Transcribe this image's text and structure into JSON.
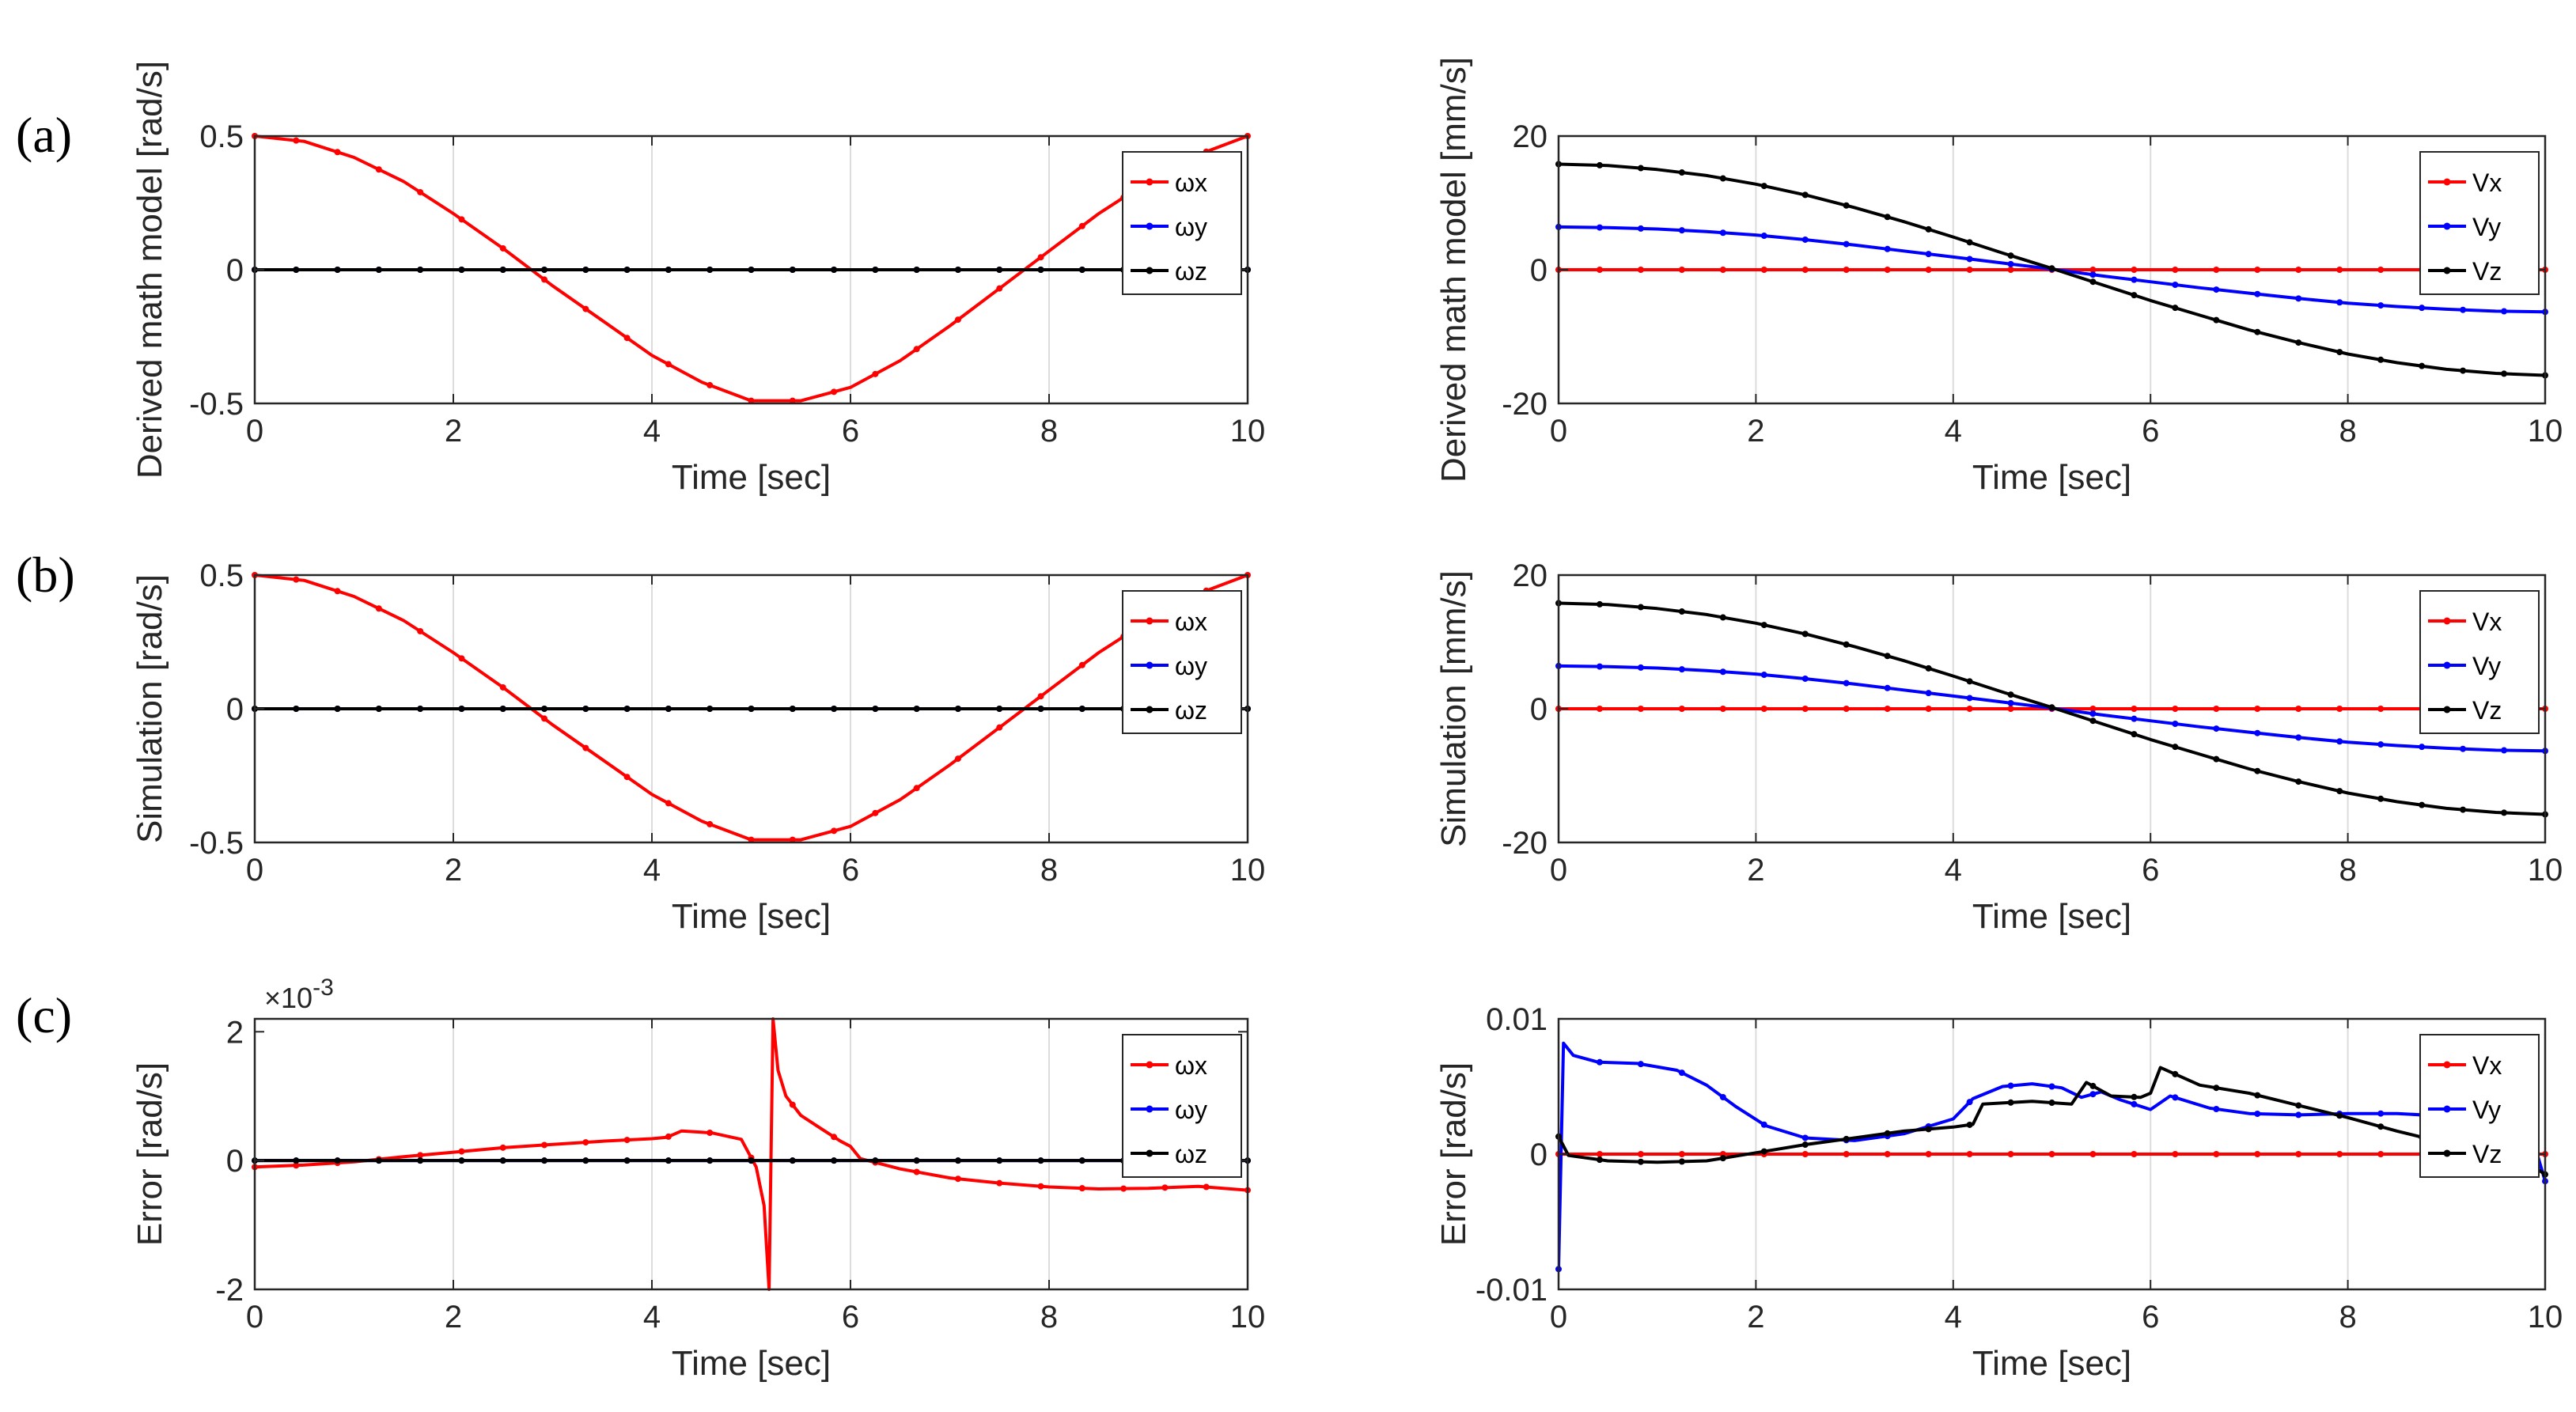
{
  "figure": {
    "row_labels": [
      "(a)",
      "(b)",
      "(c)"
    ]
  },
  "colors": {
    "red": "#ff0000",
    "blue": "#0000ff",
    "black": "#000000",
    "grid": "#dcdcdc",
    "axis": "#262626"
  },
  "chart_data": [
    {
      "id": "a-left",
      "type": "line",
      "title": "",
      "xlabel": "Time [sec]",
      "ylabel": "Derived math model [rad/s]",
      "xlim": [
        0,
        10
      ],
      "ylim": [
        -0.5,
        0.5
      ],
      "xticks": [
        0,
        2,
        4,
        6,
        8,
        10
      ],
      "xtick_labels": [
        "0",
        "2",
        "4",
        "6",
        "8",
        "10"
      ],
      "yticks": [
        -0.5,
        0,
        0.5
      ],
      "ytick_labels": [
        "-0.5",
        "0",
        "0.5"
      ],
      "grid": "x",
      "legend": "top-right",
      "series": [
        {
          "name": "ωx",
          "color": "#ff0000",
          "x": [
            0,
            0.5,
            1,
            1.5,
            2,
            2.5,
            3,
            3.5,
            4,
            4.5,
            5,
            5.5,
            6,
            6.5,
            7,
            7.5,
            8,
            8.5,
            9,
            9.5,
            10
          ],
          "y": [
            0.5,
            0.48,
            0.42,
            0.33,
            0.21,
            0.08,
            -0.06,
            -0.19,
            -0.32,
            -0.42,
            -0.49,
            -0.49,
            -0.44,
            -0.34,
            -0.21,
            -0.07,
            0.07,
            0.21,
            0.33,
            0.43,
            0.5
          ]
        },
        {
          "name": "ωy",
          "color": "#0000ff",
          "x": [
            0,
            10
          ],
          "y": [
            0,
            0
          ]
        },
        {
          "name": "ωz",
          "color": "#000000",
          "x": [
            0,
            10
          ],
          "y": [
            0,
            0
          ]
        }
      ]
    },
    {
      "id": "a-right",
      "type": "line",
      "title": "",
      "xlabel": "Time [sec]",
      "ylabel": "Derived math model [mm/s]",
      "xlim": [
        0,
        10
      ],
      "ylim": [
        -20,
        20
      ],
      "xticks": [
        0,
        2,
        4,
        6,
        8,
        10
      ],
      "xtick_labels": [
        "0",
        "2",
        "4",
        "6",
        "8",
        "10"
      ],
      "yticks": [
        -20,
        0,
        20
      ],
      "ytick_labels": [
        "-20",
        "0",
        "20"
      ],
      "grid": "x",
      "legend": "top-right",
      "series": [
        {
          "name": "Vx",
          "color": "#ff0000",
          "x": [
            0,
            10
          ],
          "y": [
            0,
            0
          ]
        },
        {
          "name": "Vy",
          "color": "#0000ff",
          "x": [
            0,
            0.5,
            1,
            1.5,
            2,
            2.5,
            3,
            3.5,
            4,
            4.5,
            5,
            5.5,
            6,
            6.5,
            7,
            7.5,
            8,
            8.5,
            9,
            9.5,
            10
          ],
          "y": [
            6.4,
            6.3,
            6.1,
            5.7,
            5.2,
            4.5,
            3.7,
            2.8,
            1.9,
            1.0,
            0.1,
            -0.9,
            -1.8,
            -2.7,
            -3.5,
            -4.3,
            -5.0,
            -5.5,
            -5.9,
            -6.2,
            -6.3
          ]
        },
        {
          "name": "Vz",
          "color": "#000000",
          "x": [
            0,
            0.5,
            1,
            1.5,
            2,
            2.5,
            3,
            3.5,
            4,
            4.5,
            5,
            5.5,
            6,
            6.5,
            7,
            7.5,
            8,
            8.5,
            9,
            9.5,
            10
          ],
          "y": [
            15.8,
            15.6,
            15.0,
            14.1,
            12.8,
            11.2,
            9.3,
            7.2,
            4.9,
            2.5,
            0.2,
            -2.2,
            -4.6,
            -6.8,
            -9.0,
            -10.9,
            -12.6,
            -13.9,
            -14.9,
            -15.5,
            -15.8
          ]
        }
      ]
    },
    {
      "id": "b-left",
      "type": "line",
      "title": "",
      "xlabel": "Time [sec]",
      "ylabel": "Simulation [rad/s]",
      "xlim": [
        0,
        10
      ],
      "ylim": [
        -0.5,
        0.5
      ],
      "xticks": [
        0,
        2,
        4,
        6,
        8,
        10
      ],
      "xtick_labels": [
        "0",
        "2",
        "4",
        "6",
        "8",
        "10"
      ],
      "yticks": [
        -0.5,
        0,
        0.5
      ],
      "ytick_labels": [
        "-0.5",
        "0",
        "0.5"
      ],
      "grid": "x",
      "legend": "top-right",
      "series": [
        {
          "name": "ωx",
          "color": "#ff0000",
          "x": [
            0,
            0.5,
            1,
            1.5,
            2,
            2.5,
            3,
            3.5,
            4,
            4.5,
            5,
            5.5,
            6,
            6.5,
            7,
            7.5,
            8,
            8.5,
            9,
            9.5,
            10
          ],
          "y": [
            0.5,
            0.48,
            0.42,
            0.33,
            0.21,
            0.08,
            -0.06,
            -0.19,
            -0.32,
            -0.42,
            -0.49,
            -0.49,
            -0.44,
            -0.34,
            -0.21,
            -0.07,
            0.07,
            0.21,
            0.33,
            0.43,
            0.5
          ]
        },
        {
          "name": "ωy",
          "color": "#0000ff",
          "x": [
            0,
            10
          ],
          "y": [
            0,
            0
          ]
        },
        {
          "name": "ωz",
          "color": "#000000",
          "x": [
            0,
            10
          ],
          "y": [
            0,
            0
          ]
        }
      ]
    },
    {
      "id": "b-right",
      "type": "line",
      "title": "",
      "xlabel": "Time [sec]",
      "ylabel": "Simulation [mm/s]",
      "xlim": [
        0,
        10
      ],
      "ylim": [
        -20,
        20
      ],
      "xticks": [
        0,
        2,
        4,
        6,
        8,
        10
      ],
      "xtick_labels": [
        "0",
        "2",
        "4",
        "6",
        "8",
        "10"
      ],
      "yticks": [
        -20,
        0,
        20
      ],
      "ytick_labels": [
        "-20",
        "0",
        "20"
      ],
      "grid": "x",
      "legend": "top-right",
      "series": [
        {
          "name": "Vx",
          "color": "#ff0000",
          "x": [
            0,
            10
          ],
          "y": [
            0,
            0
          ]
        },
        {
          "name": "Vy",
          "color": "#0000ff",
          "x": [
            0,
            0.5,
            1,
            1.5,
            2,
            2.5,
            3,
            3.5,
            4,
            4.5,
            5,
            5.5,
            6,
            6.5,
            7,
            7.5,
            8,
            8.5,
            9,
            9.5,
            10
          ],
          "y": [
            6.4,
            6.3,
            6.1,
            5.7,
            5.2,
            4.5,
            3.7,
            2.8,
            1.9,
            1.0,
            0.1,
            -0.9,
            -1.8,
            -2.7,
            -3.5,
            -4.3,
            -5.0,
            -5.5,
            -5.9,
            -6.2,
            -6.3
          ]
        },
        {
          "name": "Vz",
          "color": "#000000",
          "x": [
            0,
            0.5,
            1,
            1.5,
            2,
            2.5,
            3,
            3.5,
            4,
            4.5,
            5,
            5.5,
            6,
            6.5,
            7,
            7.5,
            8,
            8.5,
            9,
            9.5,
            10
          ],
          "y": [
            15.8,
            15.6,
            15.0,
            14.1,
            12.8,
            11.2,
            9.3,
            7.2,
            4.9,
            2.5,
            0.2,
            -2.2,
            -4.6,
            -6.8,
            -9.0,
            -10.9,
            -12.6,
            -13.9,
            -14.9,
            -15.5,
            -15.8
          ]
        }
      ]
    },
    {
      "id": "c-left",
      "type": "line",
      "title": "",
      "xlabel": "Time [sec]",
      "ylabel": "Error [rad/s]",
      "xlim": [
        0,
        10
      ],
      "ylim": [
        -0.002,
        0.0022
      ],
      "xticks": [
        0,
        2,
        4,
        6,
        8,
        10
      ],
      "xtick_labels": [
        "0",
        "2",
        "4",
        "6",
        "8",
        "10"
      ],
      "yticks": [
        -0.002,
        0,
        0.002
      ],
      "ytick_labels": [
        "-2",
        "0",
        "2"
      ],
      "exponent_label": "×10",
      "exponent_power": "-3",
      "grid": "x",
      "legend": "top-right",
      "series": [
        {
          "name": "ωx",
          "color": "#ff0000",
          "x": [
            0,
            0.5,
            1,
            1.5,
            2,
            2.5,
            3,
            3.5,
            4,
            4.15,
            4.3,
            4.6,
            4.9,
            5.05,
            5.13,
            5.18,
            5.22,
            5.27,
            5.35,
            5.5,
            5.7,
            5.9,
            6.0,
            6.1,
            6.5,
            7,
            7.5,
            8,
            8.5,
            9,
            9.5,
            10
          ],
          "y": [
            -0.0001,
            -7e-05,
            -2e-05,
            6e-05,
            0.00013,
            0.0002,
            0.00025,
            0.0003,
            0.00034,
            0.00036,
            0.00046,
            0.00043,
            0.00033,
            -0.0001,
            -0.0007,
            -0.002,
            0.0022,
            0.0014,
            0.001,
            0.0007,
            0.0005,
            0.0003,
            0.00022,
            3e-05,
            -0.00013,
            -0.00027,
            -0.00035,
            -0.00041,
            -0.00044,
            -0.00043,
            -0.0004,
            -0.00046
          ]
        },
        {
          "name": "ωy",
          "color": "#0000ff",
          "x": [
            0,
            10
          ],
          "y": [
            0,
            0
          ]
        },
        {
          "name": "ωz",
          "color": "#000000",
          "x": [
            0,
            10
          ],
          "y": [
            0,
            0
          ]
        }
      ]
    },
    {
      "id": "c-right",
      "type": "line",
      "title": "",
      "xlabel": "Time [sec]",
      "ylabel": "Error [rad/s]",
      "xlim": [
        0,
        10
      ],
      "ylim": [
        -0.01,
        0.01
      ],
      "xticks": [
        0,
        2,
        4,
        6,
        8,
        10
      ],
      "xtick_labels": [
        "0",
        "2",
        "4",
        "6",
        "8",
        "10"
      ],
      "yticks": [
        -0.01,
        0,
        0.01
      ],
      "ytick_labels": [
        "-0.01",
        "0",
        "0.01"
      ],
      "grid": "x",
      "legend": "top-right",
      "series": [
        {
          "name": "Vx",
          "color": "#ff0000",
          "x": [
            0,
            10
          ],
          "y": [
            0,
            0
          ]
        },
        {
          "name": "Vy",
          "color": "#0000ff",
          "x": [
            0,
            0.05,
            0.15,
            0.4,
            0.8,
            1.2,
            1.5,
            1.8,
            2.1,
            2.5,
            3.0,
            3.5,
            4.0,
            4.2,
            4.5,
            4.8,
            5.1,
            5.3,
            5.5,
            5.7,
            6.0,
            6.2,
            6.6,
            7.0,
            7.5,
            8.0,
            8.5,
            9.0,
            9.5,
            9.9,
            10
          ],
          "y": [
            -0.0085,
            0.0082,
            0.0073,
            0.0068,
            0.0067,
            0.0062,
            0.0051,
            0.0035,
            0.0021,
            0.0012,
            0.001,
            0.0015,
            0.0026,
            0.0041,
            0.005,
            0.0052,
            0.0049,
            0.0042,
            0.0046,
            0.004,
            0.0033,
            0.0043,
            0.0034,
            0.003,
            0.0029,
            0.003,
            0.003,
            0.0028,
            0.0024,
            0.0005,
            -0.002
          ]
        },
        {
          "name": "Vz",
          "color": "#000000",
          "x": [
            0,
            0.1,
            0.5,
            1.0,
            1.5,
            2.0,
            2.5,
            3.0,
            3.5,
            4.0,
            4.2,
            4.3,
            4.8,
            5.2,
            5.35,
            5.6,
            5.9,
            6.0,
            6.1,
            6.5,
            7.0,
            7.5,
            8.0,
            8.5,
            9.0,
            9.5,
            9.9,
            10
          ],
          "y": [
            0.0013,
            -0.0001,
            -0.0005,
            -0.0006,
            -0.0005,
            0.0001,
            0.0007,
            0.0012,
            0.0017,
            0.002,
            0.0022,
            0.0037,
            0.0039,
            0.0037,
            0.0053,
            0.0043,
            0.0042,
            0.0045,
            0.0064,
            0.0051,
            0.0045,
            0.0036,
            0.0027,
            0.0017,
            0.0008,
            0.0002,
            -0.001,
            -0.0015
          ]
        }
      ]
    }
  ]
}
